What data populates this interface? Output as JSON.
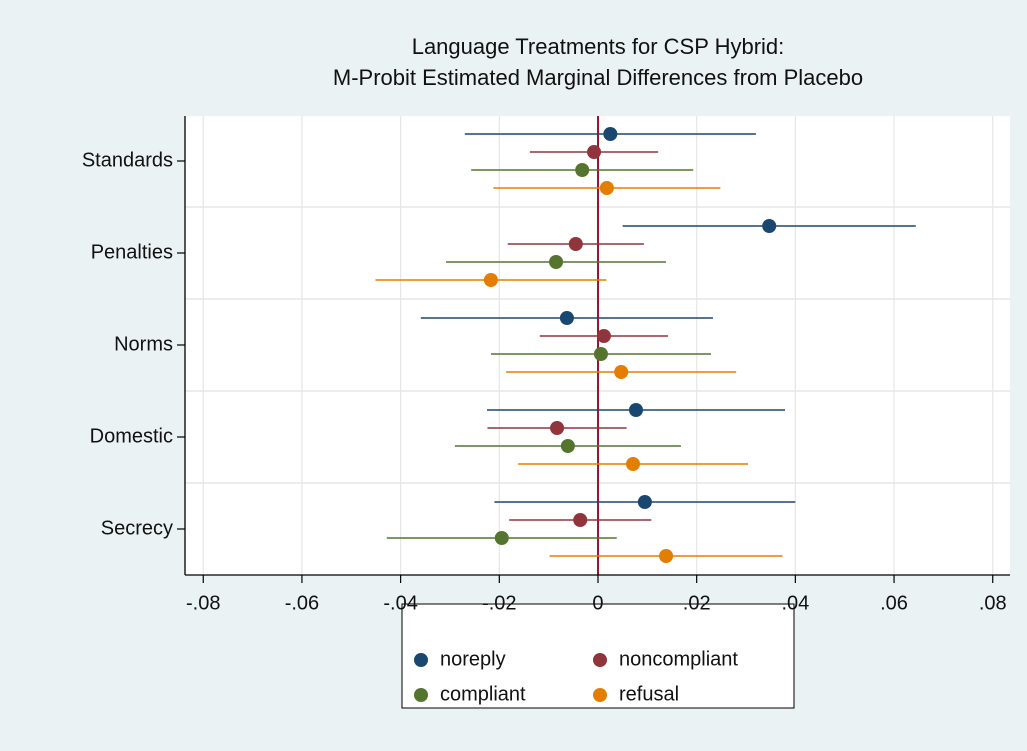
{
  "chart_data": {
    "type": "dot-errorbar",
    "title": "Language Treatments for CSP Hybrid:",
    "subtitle": "M-Probit Estimated Marginal Differences from Placebo",
    "categories": [
      "Standards",
      "Penalties",
      "Norms",
      "Domestic",
      "Secrecy"
    ],
    "series": [
      {
        "name": "noreply",
        "color": "#1a476f",
        "values": [
          0.0025,
          0.0347,
          -0.0063,
          0.0077,
          0.0095
        ],
        "errors": [
          0.0295,
          0.0297,
          0.0296,
          0.0302,
          0.0305
        ]
      },
      {
        "name": "noncompliant",
        "color": "#90353b",
        "values": [
          -0.0008,
          -0.0045,
          0.0012,
          -0.0083,
          -0.0036
        ],
        "errors": [
          0.013,
          0.0138,
          0.013,
          0.0141,
          0.0144
        ]
      },
      {
        "name": "compliant",
        "color": "#55752f",
        "values": [
          -0.0032,
          -0.0085,
          0.0006,
          -0.0061,
          -0.0195
        ],
        "errors": [
          0.0225,
          0.0223,
          0.0223,
          0.0229,
          0.0233
        ]
      },
      {
        "name": "refusal",
        "color": "#e37e00",
        "values": [
          0.0018,
          -0.0217,
          0.0047,
          0.0071,
          0.0138
        ],
        "errors": [
          0.023,
          0.0234,
          0.0233,
          0.0233,
          0.0236
        ]
      }
    ],
    "xlim": [
      -0.0837,
      0.0835
    ],
    "xticks": [
      {
        "value": -0.08,
        "label": "-.08"
      },
      {
        "value": -0.06,
        "label": "-.06"
      },
      {
        "value": -0.04,
        "label": "-.04"
      },
      {
        "value": -0.02,
        "label": "-.02"
      },
      0,
      {
        "value": 0.02,
        "label": ".02"
      },
      {
        "value": 0.04,
        "label": ".04"
      },
      {
        "value": 0.06,
        "label": ".06"
      },
      {
        "value": 0.08,
        "label": ".08"
      }
    ],
    "xline": 0,
    "xline_color": "#a0112a",
    "grid": true,
    "legend": "bottom"
  }
}
